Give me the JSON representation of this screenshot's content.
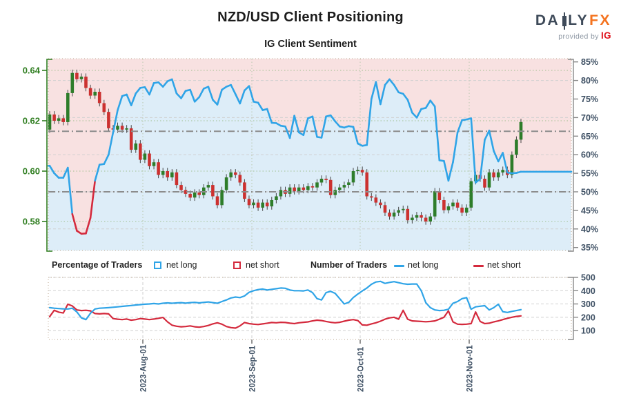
{
  "header": {
    "title": "NZD/USD Client Positioning",
    "subtitle": "IG Client Sentiment"
  },
  "logo": {
    "part1": "DA",
    "part2": "LY",
    "fx": "FX",
    "provided_by": "provided by",
    "ig": "IG",
    "slate": "#3e4a59",
    "orange": "#f4731f",
    "ig_red": "#e0141e"
  },
  "legend": {
    "percentage_label": "Percentage of Traders",
    "number_label": "Number of Traders",
    "pct_net_long": "net long",
    "pct_net_short": "net short",
    "num_net_long": "net long",
    "num_net_short": "net short"
  },
  "colors": {
    "bg_above_line_pink": "#f8e1e1",
    "bg_below_line_blue": "#ddedf8",
    "candle_up_green": "#2e7d2a",
    "candle_down_red": "#cc3130",
    "wick_gray": "#444444",
    "sentiment_blue": "#2fa4e7",
    "sentiment_red_below50": "#d42a3d",
    "count_long_blue": "#2fa4e7",
    "count_short_red": "#d42a3d",
    "price_axis_green": "#2e7d1f",
    "pct_axis_slate": "#3d4f63",
    "grid_gray": "#cfcfcf",
    "grid_green_dotted": "#9fbf8f",
    "refline_gray": "#8c8c8c",
    "plot_border_tan": "#bba58e"
  },
  "chart_data": [
    {
      "type": "candlestick+line",
      "name": "price-and-sentiment",
      "price_axis": {
        "side": "left",
        "tick_labels": [
          "0.64",
          "0.62",
          "0.60",
          "0.58"
        ],
        "tick_values": [
          0.64,
          0.62,
          0.6,
          0.58
        ],
        "range": [
          0.5755,
          0.6455
        ]
      },
      "pct_axis": {
        "side": "right",
        "tick_labels": [
          "85%",
          "80%",
          "75%",
          "70%",
          "65%",
          "60%",
          "55%",
          "50%",
          "45%",
          "40%",
          "35%"
        ],
        "tick_values": [
          85,
          80,
          75,
          70,
          65,
          60,
          55,
          50,
          45,
          40,
          35
        ],
        "range": [
          35,
          85
        ]
      },
      "x_tick_labels": [
        "2023-Aug-01",
        "2023-Sep-01",
        "2023-Oct-01",
        "2023-Nov-01"
      ],
      "grid_pct_values": [
        80,
        70,
        60,
        50,
        40
      ],
      "grid_price_values": [
        0.64,
        0.62,
        0.6,
        0.58
      ],
      "reference_lines_pct": [
        66.3,
        50
      ],
      "first_open": 0.6165,
      "candle_closes": [
        0.6225,
        0.62,
        0.621,
        0.6195,
        0.631,
        0.639,
        0.6365,
        0.6375,
        0.633,
        0.63,
        0.6315,
        0.627,
        0.6235,
        0.617,
        0.6165,
        0.618,
        0.6165,
        0.617,
        0.6085,
        0.611,
        0.6045,
        0.607,
        0.602,
        0.6035,
        0.5985,
        0.6,
        0.5975,
        0.5995,
        0.5945,
        0.5925,
        0.591,
        0.5895,
        0.5915,
        0.5905,
        0.5935,
        0.5945,
        0.59,
        0.5865,
        0.5925,
        0.5975,
        0.5995,
        0.5985,
        0.5955,
        0.589,
        0.5865,
        0.5875,
        0.5855,
        0.5875,
        0.586,
        0.5885,
        0.59,
        0.5925,
        0.591,
        0.5935,
        0.592,
        0.5935,
        0.5925,
        0.594,
        0.5935,
        0.5955,
        0.597,
        0.5965,
        0.5905,
        0.5925,
        0.5935,
        0.5945,
        0.5955,
        0.6,
        0.6005,
        0.5995,
        0.59,
        0.5895,
        0.5875,
        0.5865,
        0.5835,
        0.582,
        0.5835,
        0.5845,
        0.585,
        0.5805,
        0.5815,
        0.5825,
        0.5815,
        0.58,
        0.582,
        0.592,
        0.5885,
        0.5845,
        0.586,
        0.5875,
        0.5855,
        0.5835,
        0.5855,
        0.596,
        0.5985,
        0.597,
        0.5935,
        0.5995,
        0.5975,
        0.5995,
        0.6005,
        0.5985,
        0.6065,
        0.6125,
        0.6195
      ],
      "sentiment_pct": [
        57,
        55,
        53.8,
        53.8,
        56.5,
        44,
        39.5,
        38.7,
        38.8,
        43,
        53,
        57.3,
        57.5,
        60,
        66,
        72,
        75.8,
        76.2,
        73.3,
        76.5,
        78,
        78.2,
        76.2,
        79.3,
        79.5,
        78.3,
        79.8,
        80.3,
        76.5,
        75.2,
        77.2,
        77.5,
        74.3,
        75.5,
        77.8,
        78.3,
        74.8,
        73.5,
        77.5,
        78.3,
        78.8,
        76.3,
        73.8,
        77.3,
        78.5,
        74.3,
        74.0,
        72.0,
        72.3,
        68.6,
        68.5,
        67.8,
        67.6,
        64.5,
        70.5,
        66.0,
        65.3,
        69.8,
        70.3,
        64.8,
        64.6,
        70.3,
        70.6,
        69.0,
        67.6,
        67.3,
        67.7,
        67.5,
        63.0,
        62.4,
        62.6,
        75.0,
        79.6,
        73.6,
        78.8,
        80.3,
        78.8,
        76.8,
        76.4,
        74.8,
        71.3,
        70.0,
        72.3,
        72.6,
        74.6,
        73.0,
        58.5,
        58.3,
        53.0,
        58.0,
        66.0,
        69.3,
        69.5,
        69.8,
        52.5,
        53.5,
        64.0,
        66.5,
        61.0,
        58.2,
        60.5,
        55.2,
        55.0,
        55.1,
        55.4
      ]
    },
    {
      "type": "line",
      "name": "number-of-traders",
      "count_axis": {
        "side": "right",
        "tick_labels": [
          "500",
          "400",
          "300",
          "200",
          "100"
        ],
        "tick_values": [
          500,
          400,
          300,
          200,
          100
        ]
      },
      "x_tick_labels": [
        "2023-Aug-01",
        "2023-Sep-01",
        "2023-Oct-01",
        "2023-Nov-01"
      ],
      "series": [
        {
          "name": "net long",
          "values": [
            272,
            268,
            265,
            263,
            262,
            268,
            240,
            195,
            182,
            230,
            262,
            268,
            270,
            272,
            275,
            278,
            282,
            285,
            288,
            292,
            295,
            298,
            300,
            303,
            300,
            305,
            308,
            305,
            308,
            310,
            306,
            310,
            312,
            308,
            312,
            315,
            310,
            305,
            318,
            330,
            345,
            352,
            348,
            360,
            388,
            400,
            408,
            412,
            405,
            410,
            415,
            420,
            418,
            405,
            400,
            400,
            398,
            405,
            385,
            340,
            330,
            385,
            395,
            380,
            340,
            300,
            312,
            348,
            375,
            398,
            420,
            448,
            465,
            470,
            455,
            462,
            468,
            460,
            452,
            448,
            450,
            450,
            400,
            310,
            272,
            255,
            250,
            252,
            260,
            305,
            318,
            340,
            348,
            260,
            278,
            283,
            287,
            255,
            272,
            298,
            242,
            236,
            244,
            250,
            257
          ]
        },
        {
          "name": "net short",
          "values": [
            205,
            252,
            238,
            232,
            298,
            285,
            255,
            250,
            252,
            248,
            228,
            225,
            228,
            225,
            190,
            185,
            182,
            186,
            178,
            182,
            190,
            186,
            182,
            186,
            192,
            198,
            165,
            140,
            132,
            128,
            130,
            135,
            128,
            125,
            130,
            138,
            150,
            158,
            148,
            130,
            122,
            118,
            135,
            160,
            152,
            148,
            145,
            150,
            155,
            160,
            158,
            162,
            160,
            155,
            152,
            158,
            162,
            165,
            172,
            178,
            175,
            168,
            162,
            158,
            162,
            170,
            178,
            182,
            175,
            142,
            140,
            150,
            158,
            170,
            185,
            195,
            200,
            185,
            252,
            185,
            172,
            170,
            168,
            166,
            168,
            172,
            185,
            200,
            248,
            165,
            148,
            146,
            148,
            152,
            240,
            168,
            152,
            155,
            165,
            172,
            182,
            192,
            200,
            206,
            210
          ]
        }
      ]
    }
  ]
}
